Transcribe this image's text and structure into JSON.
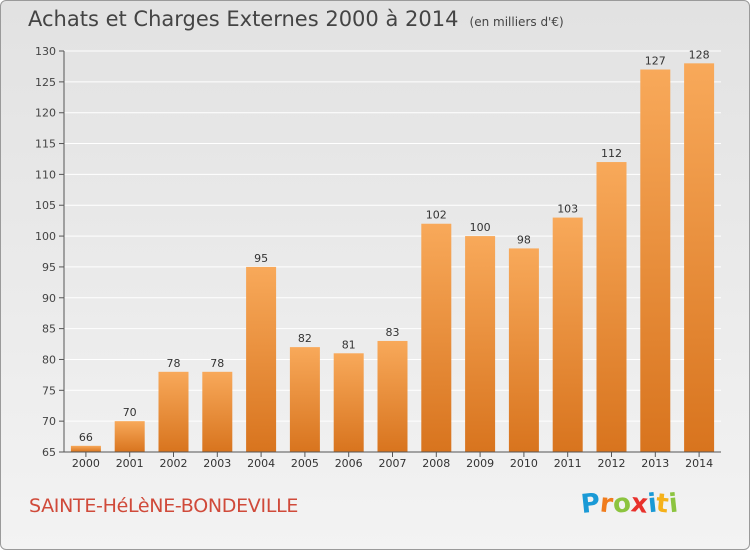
{
  "chart_data": {
    "type": "bar",
    "title": "Achats et Charges Externes 2000 à 2014",
    "subtitle": "(en milliers d'€)",
    "categories": [
      "2000",
      "2001",
      "2002",
      "2003",
      "2004",
      "2005",
      "2006",
      "2007",
      "2008",
      "2009",
      "2010",
      "2011",
      "2012",
      "2013",
      "2014"
    ],
    "values": [
      66,
      70,
      78,
      78,
      95,
      82,
      81,
      83,
      102,
      100,
      98,
      103,
      112,
      127,
      128
    ],
    "ylim": [
      65,
      130
    ],
    "yticks": [
      65,
      70,
      75,
      80,
      85,
      90,
      95,
      100,
      105,
      110,
      115,
      120,
      125,
      130
    ],
    "grid": true,
    "colors": {
      "bar_light": "#f8a95a",
      "bar_dark": "#d8741e",
      "grid": "#ffffff",
      "axis": "#555555"
    }
  },
  "footer": {
    "commune": "SAINTE-HéLèNE-BONDEVILLE",
    "logo_letters": [
      {
        "char": "P",
        "color": "#1a9ad6"
      },
      {
        "char": "r",
        "color": "#f07c1d"
      },
      {
        "char": "o",
        "color": "#8cc43f"
      },
      {
        "char": "x",
        "color": "#e8312c"
      },
      {
        "char": "i",
        "color": "#1a9ad6"
      },
      {
        "char": "t",
        "color": "#f5b11a"
      },
      {
        "char": "i",
        "color": "#8cc43f"
      }
    ]
  }
}
